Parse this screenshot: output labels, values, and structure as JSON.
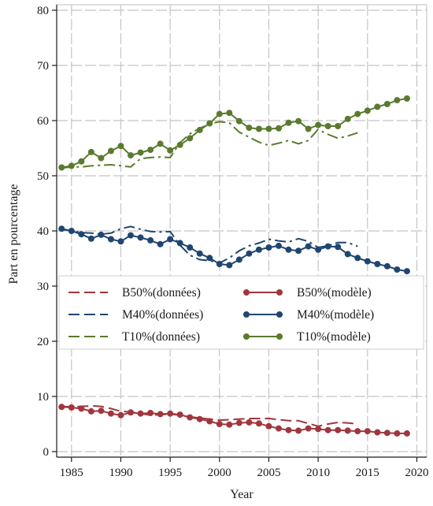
{
  "chart_data": {
    "type": "line",
    "xlabel": "Year",
    "ylabel": "Part en pourcentage",
    "xlim": [
      1983.5,
      2021
    ],
    "ylim": [
      -1,
      81
    ],
    "xticks": [
      1985,
      1990,
      1995,
      2000,
      2005,
      2010,
      2015,
      2020
    ],
    "yticks": [
      0,
      10,
      20,
      30,
      40,
      50,
      60,
      70,
      80
    ],
    "grid": "dashed",
    "legend_position": "center-left",
    "series": [
      {
        "name": "B50%(données)",
        "color": "#a0363e",
        "style": "dash",
        "x": [
          1984,
          1985,
          1986,
          1987,
          1988,
          1989,
          1990,
          1991,
          1992,
          1993,
          1994,
          1995,
          1996,
          1997,
          1998,
          1999,
          2000,
          2001,
          2002,
          2003,
          2004,
          2005,
          2006,
          2007,
          2008,
          2009,
          2010,
          2011,
          2012,
          2013,
          2014
        ],
        "y": [
          8.2,
          8.1,
          8.2,
          8.3,
          8.2,
          7.8,
          7.3,
          7.2,
          6.9,
          6.6,
          6.7,
          6.8,
          6.6,
          6.3,
          6.1,
          5.9,
          5.7,
          5.8,
          5.9,
          6.0,
          6.0,
          6.0,
          5.8,
          5.6,
          5.6,
          5.1,
          4.6,
          5.0,
          5.3,
          5.2,
          5.0
        ]
      },
      {
        "name": "M40%(données)",
        "color": "#1f4670",
        "style": "dashdot",
        "x": [
          1984,
          1985,
          1986,
          1987,
          1988,
          1989,
          1990,
          1991,
          1992,
          1993,
          1994,
          1995,
          1996,
          1997,
          1998,
          1999,
          2000,
          2001,
          2002,
          2003,
          2004,
          2005,
          2006,
          2007,
          2008,
          2009,
          2010,
          2011,
          2012,
          2013,
          2014
        ],
        "y": [
          40.3,
          40.0,
          39.7,
          39.6,
          39.4,
          39.6,
          40.4,
          40.8,
          40.3,
          39.9,
          39.8,
          39.9,
          37.4,
          35.6,
          34.8,
          34.6,
          34.2,
          35.1,
          36.4,
          37.3,
          37.8,
          38.5,
          38.2,
          38.0,
          38.6,
          38.1,
          37.0,
          37.3,
          37.9,
          37.9,
          37.2
        ]
      },
      {
        "name": "T10%(données)",
        "color": "#5b7a2e",
        "style": "dashdot",
        "x": [
          1984,
          1985,
          1986,
          1987,
          1988,
          1989,
          1990,
          1991,
          1992,
          1993,
          1994,
          1995,
          1996,
          1997,
          1998,
          1999,
          2000,
          2001,
          2002,
          2003,
          2004,
          2005,
          2006,
          2007,
          2008,
          2009,
          2010,
          2011,
          2012,
          2013,
          2014
        ],
        "y": [
          51.4,
          51.6,
          51.6,
          51.8,
          51.9,
          52.0,
          51.8,
          51.6,
          53.1,
          53.3,
          53.4,
          53.3,
          56.0,
          57.6,
          58.6,
          59.4,
          59.8,
          59.6,
          57.9,
          57.0,
          56.1,
          55.5,
          55.9,
          56.4,
          55.8,
          56.4,
          58.4,
          57.5,
          56.8,
          57.2,
          57.8
        ]
      },
      {
        "name": "B50%(modèle)",
        "color": "#a0363e",
        "style": "solid-dot",
        "x": [
          1984,
          1985,
          1986,
          1987,
          1988,
          1989,
          1990,
          1991,
          1992,
          1993,
          1994,
          1995,
          1996,
          1997,
          1998,
          1999,
          2000,
          2001,
          2002,
          2003,
          2004,
          2005,
          2006,
          2007,
          2008,
          2009,
          2010,
          2011,
          2012,
          2013,
          2014,
          2015,
          2016,
          2017,
          2018,
          2019
        ],
        "y": [
          8.1,
          8.0,
          7.8,
          7.3,
          7.4,
          6.9,
          6.6,
          7.1,
          6.9,
          7.0,
          6.8,
          6.9,
          6.7,
          6.2,
          5.9,
          5.5,
          5.0,
          4.9,
          5.2,
          5.3,
          5.1,
          4.6,
          4.2,
          3.9,
          3.8,
          4.2,
          4.1,
          3.9,
          3.9,
          3.8,
          3.7,
          3.7,
          3.5,
          3.4,
          3.3,
          3.3
        ]
      },
      {
        "name": "M40%(modèle)",
        "color": "#1f4670",
        "style": "solid-dot",
        "x": [
          1984,
          1985,
          1986,
          1987,
          1988,
          1989,
          1990,
          1991,
          1992,
          1993,
          1994,
          1995,
          1996,
          1997,
          1998,
          1999,
          2000,
          2001,
          2002,
          2003,
          2004,
          2005,
          2006,
          2007,
          2008,
          2009,
          2010,
          2011,
          2012,
          2013,
          2014,
          2015,
          2016,
          2017,
          2018,
          2019
        ],
        "y": [
          40.4,
          40.0,
          39.4,
          38.6,
          39.3,
          38.5,
          38.1,
          39.2,
          38.8,
          38.3,
          37.6,
          38.5,
          37.8,
          37.0,
          35.9,
          35.1,
          34.0,
          33.8,
          34.8,
          35.9,
          36.6,
          37.0,
          37.3,
          36.6,
          36.4,
          37.2,
          36.6,
          37.2,
          37.1,
          35.8,
          35.1,
          34.5,
          34.0,
          33.6,
          33.0,
          32.7
        ]
      },
      {
        "name": "T10%(modèle)",
        "color": "#5b7a2e",
        "style": "solid-dot",
        "x": [
          1984,
          1985,
          1986,
          1987,
          1988,
          1989,
          1990,
          1991,
          1992,
          1993,
          1994,
          1995,
          1996,
          1997,
          1998,
          1999,
          2000,
          2001,
          2002,
          2003,
          2004,
          2005,
          2006,
          2007,
          2008,
          2009,
          2010,
          2011,
          2012,
          2013,
          2014,
          2015,
          2016,
          2017,
          2018,
          2019
        ],
        "y": [
          51.5,
          51.8,
          52.6,
          54.3,
          53.2,
          54.5,
          55.4,
          53.7,
          54.2,
          54.7,
          55.8,
          54.6,
          55.6,
          56.8,
          58.3,
          59.5,
          61.2,
          61.4,
          59.9,
          58.7,
          58.5,
          58.5,
          58.6,
          59.6,
          59.9,
          58.5,
          59.2,
          59.0,
          59.0,
          60.3,
          61.2,
          61.8,
          62.5,
          63.0,
          63.7,
          64.0
        ]
      }
    ],
    "legend_order": [
      0,
      3,
      1,
      4,
      2,
      5
    ]
  }
}
